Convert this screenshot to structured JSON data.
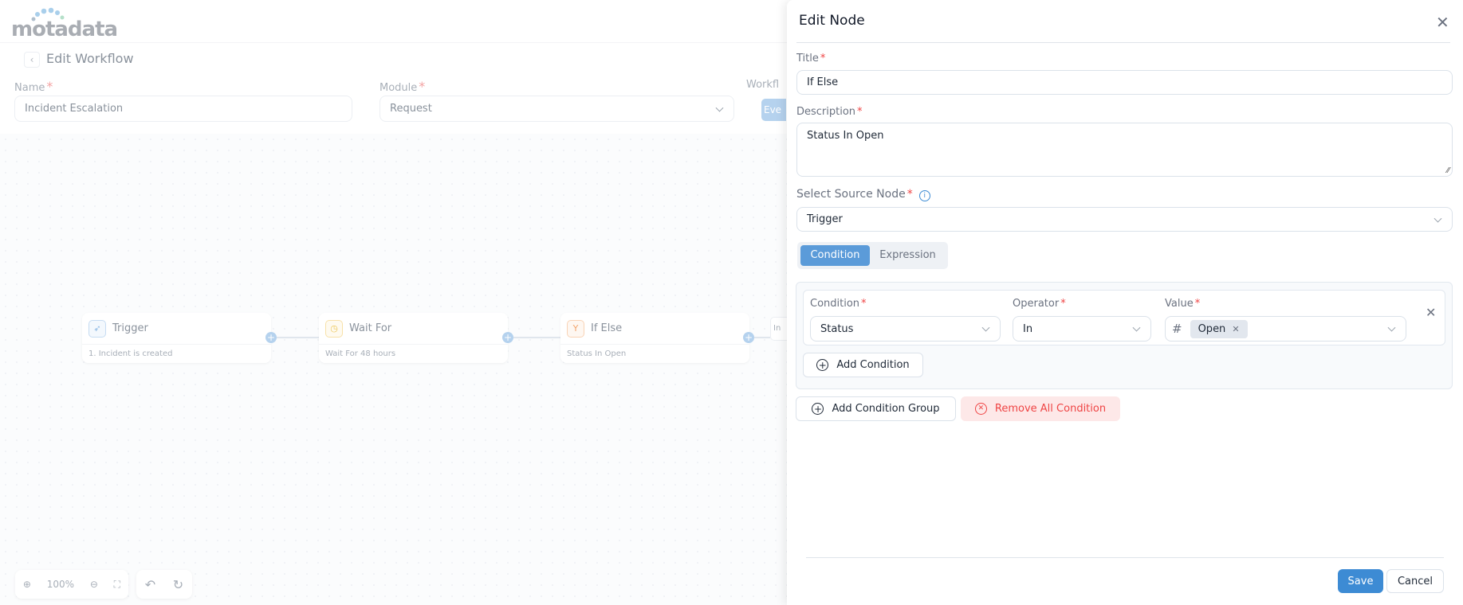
{
  "app": {
    "logo": "motadata"
  },
  "page": {
    "title": "Edit Workflow",
    "name_label": "Name",
    "name_value": "Incident Escalation",
    "module_label": "Module",
    "module_value": "Request",
    "workflow_label": "Workfl",
    "workflow_button": "Eve"
  },
  "canvas": {
    "nodes": [
      {
        "title": "Trigger",
        "desc": "1. Incident is created",
        "icon": "rocket-icon"
      },
      {
        "title": "Wait For",
        "desc": "Wait For 48 hours",
        "icon": "clock-icon"
      },
      {
        "title": "If Else",
        "desc": "Status In Open",
        "icon": "branch-icon"
      },
      {
        "title": "In"
      }
    ],
    "zoom": "100%"
  },
  "panel": {
    "title": "Edit Node",
    "title_label": "Title",
    "title_value": "If Else",
    "description_label": "Description",
    "description_value": "Status In Open",
    "source_label": "Select Source Node",
    "source_value": "Trigger",
    "tabs": [
      "Condition",
      "Expression"
    ],
    "condition": {
      "condition_label": "Condition",
      "condition_value": "Status",
      "operator_label": "Operator",
      "operator_value": "In",
      "value_label": "Value",
      "value_tag": "Open"
    },
    "add_condition": "Add Condition",
    "add_group": "Add Condition Group",
    "remove_all": "Remove All Condition",
    "save": "Save",
    "cancel": "Cancel"
  },
  "colors": {
    "primary": "#3d8bd4",
    "danger": "#ef4444",
    "danger_bg": "#fde8e8"
  }
}
